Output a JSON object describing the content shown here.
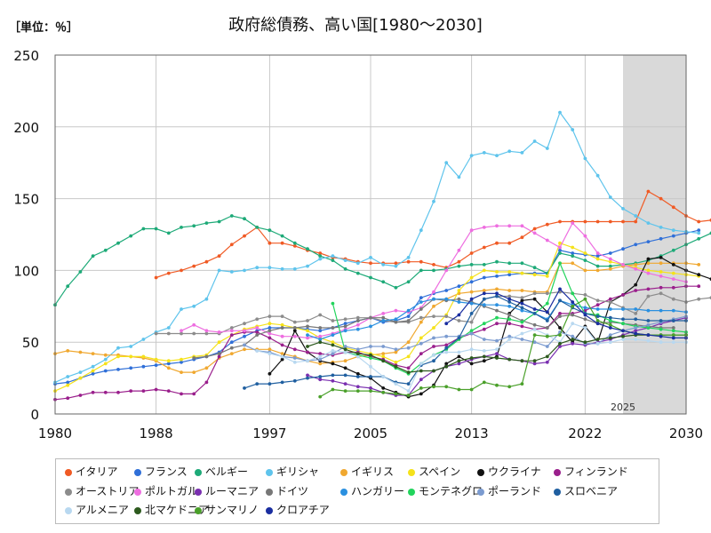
{
  "unit_label": "［単位：％］",
  "chart_data": {
    "type": "line",
    "title": "政府総債務、高い国[1980～2030]",
    "xlabel": "",
    "ylabel": "",
    "xlim": [
      1980,
      2030
    ],
    "ylim": [
      0,
      250
    ],
    "xticks": [
      1980,
      1988,
      1997,
      2005,
      2013,
      2022,
      2030
    ],
    "yticks": [
      0,
      50,
      100,
      150,
      200,
      250
    ],
    "grid": true,
    "forecast_start": 2025,
    "forecast_label": "2025",
    "legend_position": "bottom",
    "series": [
      {
        "name": "イタリア",
        "color": "#f05a24",
        "start": 1988,
        "values": [
          95,
          98,
          100,
          103,
          106,
          110,
          118,
          124,
          130,
          119,
          119,
          117,
          114,
          112,
          109,
          108,
          106,
          105,
          105,
          105,
          106,
          106,
          104,
          102,
          106,
          112,
          116,
          119,
          119,
          123,
          129,
          132,
          134,
          134,
          134,
          134,
          134,
          134,
          134,
          155,
          150,
          144,
          138,
          134,
          135,
          136,
          137,
          138,
          138,
          138,
          137,
          137,
          137
        ]
      },
      {
        "name": "フランス",
        "color": "#2f6fd8",
        "start": 1980,
        "values": [
          21,
          22,
          25,
          28,
          30,
          31,
          32,
          33,
          34,
          35,
          36,
          38,
          40,
          43,
          50,
          54,
          58,
          60,
          60,
          60,
          59,
          58,
          60,
          63,
          65,
          67,
          64,
          65,
          68,
          81,
          84,
          86,
          89,
          92,
          95,
          96,
          97,
          98,
          98,
          98,
          114,
          112,
          111,
          110,
          112,
          115,
          118,
          120,
          122,
          124,
          126,
          128
        ]
      },
      {
        "name": "ベルギー",
        "color": "#1eaa78",
        "start": 1980,
        "values": [
          76,
          89,
          99,
          110,
          114,
          119,
          124,
          129,
          129,
          126,
          130,
          131,
          133,
          134,
          138,
          136,
          130,
          128,
          124,
          119,
          115,
          110,
          107,
          101,
          98,
          95,
          92,
          88,
          92,
          100,
          100,
          101,
          103,
          104,
          104,
          106,
          105,
          105,
          102,
          98,
          112,
          110,
          107,
          103,
          103,
          104,
          105,
          107,
          110,
          114,
          118,
          122,
          126
        ]
      },
      {
        "name": "ギリシャ",
        "color": "#5fc4ec",
        "start": 1980,
        "values": [
          22,
          26,
          29,
          33,
          38,
          46,
          47,
          52,
          57,
          60,
          73,
          75,
          80,
          100,
          99,
          100,
          102,
          102,
          101,
          101,
          103,
          108,
          110,
          107,
          105,
          109,
          104,
          103,
          109,
          128,
          148,
          175,
          165,
          180,
          182,
          180,
          183,
          182,
          190,
          185,
          210,
          198,
          178,
          166,
          151,
          143,
          138,
          133,
          130,
          128,
          127,
          126
        ]
      },
      {
        "name": "イギリス",
        "color": "#f0a830",
        "start": 1980,
        "values": [
          42,
          44,
          43,
          42,
          41,
          41,
          40,
          39,
          37,
          32,
          29,
          29,
          32,
          39,
          42,
          45,
          45,
          45,
          42,
          40,
          37,
          35,
          36,
          37,
          40,
          41,
          42,
          43,
          50,
          64,
          75,
          80,
          84,
          85,
          86,
          87,
          86,
          86,
          85,
          85,
          105,
          105,
          100,
          100,
          101,
          103,
          104,
          105,
          105,
          105,
          105,
          104
        ]
      },
      {
        "name": "スペイン",
        "color": "#f5e21a",
        "start": 1980,
        "values": [
          16,
          20,
          25,
          30,
          35,
          40,
          40,
          40,
          38,
          37,
          38,
          40,
          41,
          50,
          55,
          59,
          61,
          63,
          62,
          60,
          58,
          53,
          50,
          46,
          44,
          42,
          40,
          36,
          40,
          53,
          60,
          69,
          86,
          95,
          100,
          99,
          99,
          98,
          97,
          96,
          119,
          116,
          112,
          108,
          106,
          104,
          102,
          100,
          99,
          98,
          97,
          96
        ]
      },
      {
        "name": "ウクライナ",
        "color": "#111111",
        "start": 1997,
        "values": [
          28,
          38,
          58,
          43,
          37,
          35,
          32,
          28,
          25,
          18,
          15,
          12,
          14,
          20,
          35,
          40,
          35,
          37,
          40,
          70,
          79,
          80,
          71,
          60,
          50,
          61,
          50,
          78,
          83,
          90,
          108,
          109,
          104,
          100,
          97,
          94,
          92,
          90
        ]
      },
      {
        "name": "フィンランド",
        "color": "#9a1f8c",
        "start": 1980,
        "values": [
          10,
          11,
          13,
          15,
          15,
          15,
          16,
          16,
          17,
          16,
          14,
          14,
          22,
          40,
          55,
          57,
          57,
          53,
          48,
          45,
          43,
          42,
          41,
          43,
          43,
          40,
          38,
          34,
          32,
          42,
          47,
          48,
          53,
          56,
          59,
          63,
          63,
          61,
          59,
          60,
          70,
          70,
          72,
          76,
          80,
          83,
          86,
          87,
          88,
          88,
          89,
          89
        ]
      },
      {
        "name": "オーストリア",
        "color": "#8c8c8c",
        "start": 1988,
        "values": [
          56,
          56,
          56,
          56,
          56,
          56,
          60,
          63,
          66,
          68,
          68,
          64,
          65,
          69,
          65,
          66,
          67,
          67,
          65,
          64,
          64,
          67,
          68,
          68,
          65,
          64,
          80,
          82,
          82,
          81,
          84,
          84,
          85,
          84,
          83,
          79,
          78,
          74,
          70,
          82,
          84,
          80,
          78,
          80,
          81,
          82,
          83,
          84,
          84,
          85,
          85
        ]
      },
      {
        "name": "ポルトガル",
        "color": "#ee6ee0",
        "start": 1990,
        "values": [
          58,
          62,
          58,
          57,
          58,
          58,
          60,
          56,
          54,
          54,
          53,
          54,
          56,
          59,
          62,
          67,
          70,
          72,
          71,
          74,
          85,
          100,
          114,
          128,
          130,
          131,
          131,
          131,
          126,
          121,
          116,
          133,
          124,
          112,
          108,
          104,
          101,
          98,
          96,
          94,
          92
        ]
      },
      {
        "name": "ルーマニア",
        "color": "#7a2fb0",
        "start": 2000,
        "values": [
          27,
          24,
          23,
          21,
          19,
          18,
          15,
          13,
          13,
          24,
          30,
          33,
          35,
          38,
          40,
          42,
          38,
          37,
          35,
          36,
          47,
          49,
          48,
          50,
          52,
          55,
          58,
          60,
          63,
          65,
          67
        ]
      },
      {
        "name": "ドイツ",
        "color": "#777777",
        "start": 1991,
        "values": [
          39,
          40,
          42,
          46,
          48,
          55,
          58,
          60,
          60,
          61,
          60,
          60,
          61,
          65,
          67,
          67,
          64,
          65,
          73,
          80,
          79,
          80,
          78,
          75,
          72,
          69,
          65,
          62,
          60,
          68,
          69,
          66,
          63,
          64,
          63,
          62,
          61,
          60,
          60
        ]
      },
      {
        "name": "ハンガリー",
        "color": "#2a90e0",
        "start": 2000,
        "values": [
          55,
          52,
          55,
          58,
          59,
          61,
          65,
          66,
          72,
          78,
          80,
          80,
          78,
          77,
          76,
          76,
          75,
          72,
          70,
          66,
          79,
          76,
          74,
          73,
          73,
          73,
          73,
          72,
          72,
          72,
          71
        ]
      },
      {
        "name": "モンテネグロ",
        "color": "#22d45c",
        "start": 2002,
        "values": [
          77,
          43,
          41,
          39,
          37,
          32,
          28,
          35,
          41,
          45,
          52,
          58,
          63,
          67,
          66,
          64,
          70,
          77,
          105,
          84,
          70,
          69,
          65,
          63,
          61,
          60,
          59,
          58,
          57
        ]
      },
      {
        "name": "ポーランド",
        "color": "#7b9bd0",
        "start": 1995,
        "values": [
          48,
          44,
          43,
          40,
          39,
          37,
          38,
          42,
          47,
          45,
          47,
          47,
          45,
          46,
          49,
          53,
          54,
          54,
          56,
          52,
          51,
          54,
          52,
          50,
          47,
          57,
          54,
          49,
          49,
          55,
          58,
          60,
          62,
          64,
          66,
          68
        ]
      },
      {
        "name": "スロベニア",
        "color": "#1f5fa0",
        "start": 1995,
        "values": [
          18,
          21,
          21,
          22,
          23,
          25,
          26,
          27,
          27,
          26,
          26,
          26,
          22,
          21,
          34,
          37,
          46,
          53,
          70,
          80,
          82,
          78,
          74,
          70,
          65,
          79,
          74,
          70,
          68,
          67,
          66,
          66,
          65,
          65,
          65,
          65
        ]
      },
      {
        "name": "アルメニア",
        "color": "#b8d8f0",
        "start": 1996,
        "values": [
          44,
          42,
          40,
          36,
          37,
          40,
          44,
          43,
          40,
          33,
          26,
          21,
          16,
          35,
          41,
          43,
          43,
          45,
          44,
          45,
          52,
          56,
          59,
          55,
          50,
          63,
          60,
          49,
          50,
          52,
          52,
          51,
          50,
          50,
          50
        ]
      },
      {
        "name": "北マケドニア",
        "color": "#2d5a1e",
        "start": 2000,
        "values": [
          47,
          50,
          48,
          45,
          42,
          41,
          37,
          33,
          29,
          30,
          30,
          33,
          37,
          39,
          40,
          39,
          38,
          37,
          37,
          40,
          49,
          52,
          50,
          52,
          53,
          54,
          55,
          55,
          55,
          55,
          55
        ]
      },
      {
        "name": "サンマリノ",
        "color": "#4aa02a",
        "start": 2001,
        "values": [
          12,
          17,
          16,
          16,
          16,
          15,
          14,
          13,
          18,
          19,
          19,
          17,
          17,
          22,
          20,
          19,
          21,
          55,
          54,
          55,
          75,
          80,
          65,
          62,
          58,
          56,
          55,
          55,
          55,
          55
        ]
      },
      {
        "name": "クロアチア",
        "color": "#1a2ea0",
        "start": 2011,
        "values": [
          63,
          69,
          80,
          84,
          84,
          80,
          77,
          73,
          71,
          87,
          78,
          69,
          63,
          60,
          58,
          56,
          55,
          54,
          53,
          53
        ]
      }
    ]
  }
}
